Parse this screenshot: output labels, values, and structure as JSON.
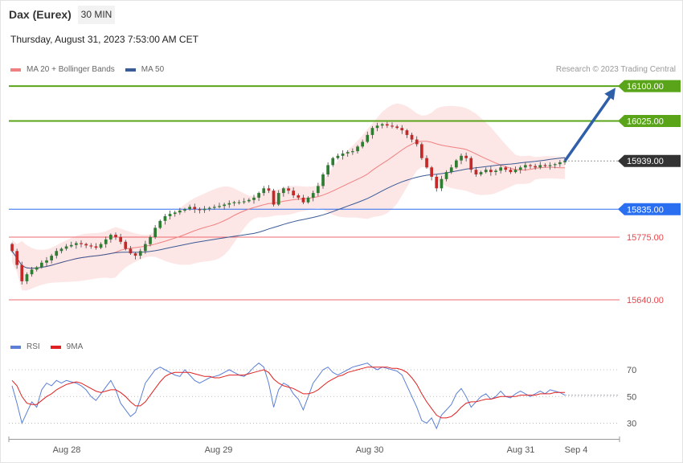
{
  "header": {
    "title": "Dax (Eurex)",
    "interval": "30 MIN",
    "datetime": "Thursday, August 31, 2023 7:53:00 AM CET",
    "copyright": "Research © 2023 Trading Central"
  },
  "colors": {
    "green": "#5aa41a",
    "blue": "#2a6ff0",
    "red": "#e8454a",
    "price_tag": "#333333",
    "candle_up": "#2e7d32",
    "candle_down": "#c62828",
    "band_fill": "#fde3e3",
    "ma20": "#f08080",
    "ma50": "#3b5b95",
    "rsi": "#5b7fd6",
    "rsi_ma": "#e02020",
    "arrow": "#2f5fa8"
  },
  "chart_data": [
    {
      "type": "candlestick",
      "legend": [
        {
          "label": "MA 20 + Bollinger Bands",
          "color": "#f08080"
        },
        {
          "label": "MA 50",
          "color": "#3b5b95"
        }
      ],
      "ylim": [
        15600,
        16120
      ],
      "x_ticks": [
        "Aug 28",
        "Aug 29",
        "Aug 30",
        "Aug 31",
        "Sep 4"
      ],
      "levels": [
        {
          "label": "16100.00",
          "value": 16100,
          "kind": "resistance",
          "color": "#5aa41a"
        },
        {
          "label": "16025.00",
          "value": 16025,
          "kind": "resistance",
          "color": "#5aa41a"
        },
        {
          "label": "15939.00",
          "value": 15939,
          "kind": "last-price",
          "color": "#333333"
        },
        {
          "label": "15835.00",
          "value": 15835,
          "kind": "pivot",
          "color": "#2a6ff0"
        },
        {
          "label": "15775.00",
          "value": 15775,
          "kind": "support",
          "color": "#e8454a"
        },
        {
          "label": "15640.00",
          "value": 15640,
          "kind": "support",
          "color": "#e8454a"
        }
      ],
      "close": [
        15745,
        15715,
        15680,
        15695,
        15705,
        15710,
        15720,
        15725,
        15735,
        15745,
        15750,
        15755,
        15758,
        15762,
        15760,
        15757,
        15755,
        15752,
        15760,
        15770,
        15780,
        15775,
        15765,
        15750,
        15740,
        15735,
        15745,
        15760,
        15775,
        15795,
        15810,
        15820,
        15825,
        15828,
        15832,
        15835,
        15840,
        15835,
        15833,
        15836,
        15838,
        15840,
        15842,
        15845,
        15848,
        15850,
        15850,
        15852,
        15855,
        15860,
        15870,
        15880,
        15875,
        15845,
        15870,
        15880,
        15875,
        15865,
        15860,
        15850,
        15860,
        15870,
        15885,
        15910,
        15930,
        15945,
        15950,
        15955,
        15958,
        15960,
        15970,
        15980,
        15995,
        16010,
        16015,
        16018,
        16015,
        16013,
        16010,
        16005,
        15995,
        15985,
        15975,
        15945,
        15925,
        15905,
        15880,
        15900,
        15915,
        15925,
        15940,
        15950,
        15945,
        15920,
        15910,
        15915,
        15920,
        15915,
        15918,
        15925,
        15920,
        15915,
        15920,
        15925,
        15930,
        15928,
        15925,
        15930,
        15928,
        15930,
        15932,
        15936,
        15939
      ],
      "arrow": {
        "from_index": 112,
        "from_value": 15939,
        "to_value": 16100
      }
    },
    {
      "type": "line",
      "legend": [
        {
          "label": "RSI",
          "color": "#5b7fd6"
        },
        {
          "label": "9MA",
          "color": "#e02020"
        }
      ],
      "ylim": [
        20,
        80
      ],
      "y_ticks": [
        70,
        50,
        30
      ],
      "rsi": [
        58,
        45,
        30,
        38,
        46,
        42,
        55,
        60,
        58,
        62,
        60,
        62,
        61,
        60,
        58,
        55,
        50,
        47,
        52,
        57,
        62,
        55,
        45,
        40,
        35,
        38,
        48,
        60,
        65,
        70,
        72,
        70,
        68,
        66,
        65,
        70,
        66,
        62,
        60,
        62,
        64,
        65,
        66,
        68,
        70,
        68,
        66,
        65,
        68,
        72,
        75,
        72,
        60,
        42,
        55,
        60,
        58,
        52,
        48,
        40,
        50,
        60,
        65,
        70,
        72,
        68,
        66,
        68,
        70,
        72,
        73,
        74,
        75,
        72,
        70,
        72,
        71,
        70,
        69,
        66,
        58,
        50,
        42,
        32,
        30,
        34,
        26,
        36,
        40,
        44,
        52,
        56,
        50,
        42,
        46,
        50,
        52,
        48,
        50,
        54,
        50,
        49,
        52,
        54,
        52,
        50,
        52,
        54,
        52,
        55,
        54,
        53,
        51
      ],
      "rsi_ma": [
        62,
        58,
        50,
        45,
        44,
        44,
        47,
        50,
        52,
        55,
        57,
        59,
        60,
        61,
        60,
        58,
        56,
        54,
        53,
        54,
        55,
        55,
        53,
        50,
        46,
        43,
        43,
        46,
        51,
        56,
        61,
        65,
        67,
        68,
        68,
        68,
        68,
        67,
        66,
        65,
        65,
        64,
        64,
        65,
        66,
        66,
        66,
        66,
        67,
        68,
        69,
        70,
        68,
        63,
        60,
        58,
        57,
        56,
        54,
        52,
        52,
        53,
        55,
        58,
        61,
        63,
        65,
        66,
        68,
        69,
        70,
        71,
        72,
        72,
        72,
        72,
        72,
        71,
        71,
        70,
        68,
        64,
        59,
        52,
        46,
        41,
        36,
        34,
        34,
        35,
        38,
        42,
        45,
        46,
        46,
        47,
        48,
        48,
        49,
        50,
        50,
        50,
        50,
        51,
        51,
        51,
        51,
        52,
        52,
        52,
        53,
        53,
        53
      ]
    }
  ]
}
